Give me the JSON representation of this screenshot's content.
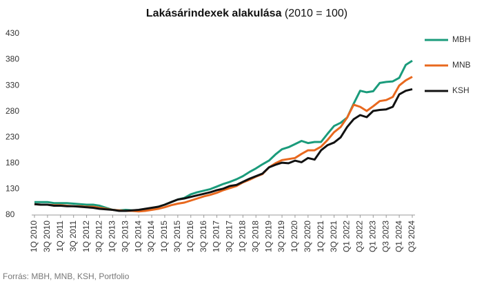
{
  "chart_data": {
    "type": "line",
    "title": "Lakásárindexek alakulása",
    "subtitle": "(2010 = 100)",
    "source": "Forrás: MBH, MNB, KSH, Portfolio",
    "categories": [
      "1Q 2010",
      null,
      "3Q 2010",
      null,
      "1Q 2011",
      null,
      "3Q 2011",
      null,
      "1Q 2012",
      null,
      "3Q 2012",
      null,
      "1Q 2013",
      null,
      "3Q 2013",
      null,
      "1Q 2014",
      null,
      "3Q 2014",
      null,
      "1Q 2015",
      null,
      "3Q 2015",
      null,
      "1Q 2016",
      null,
      "3Q 2016",
      null,
      "1Q 2017",
      null,
      "3Q 2017",
      null,
      "1Q 2018",
      null,
      "3Q 2018",
      null,
      "1Q 2019",
      null,
      "3Q 2019",
      null,
      "1Q 2020",
      null,
      "3Q 2020",
      null,
      "1Q 2021",
      null,
      "3Q 2021",
      null,
      "Q1 2022",
      null,
      "Q3 2022",
      null,
      "Q1 2023",
      null,
      "Q3 2023",
      null,
      "Q1 2024",
      null,
      "Q3 2024"
    ],
    "series": [
      {
        "name": "MBH",
        "color": "#1a9b7b",
        "values": [
          105,
          105,
          105,
          103,
          103,
          103,
          102,
          101,
          100,
          100,
          98,
          94,
          90,
          89,
          90,
          89,
          89,
          91,
          93,
          96,
          100,
          105,
          110,
          113,
          120,
          124,
          127,
          130,
          135,
          140,
          144,
          149,
          155,
          163,
          170,
          178,
          185,
          197,
          207,
          211,
          217,
          223,
          219,
          221,
          221,
          237,
          252,
          258,
          268,
          295,
          320,
          317,
          319,
          335,
          337,
          338,
          345,
          370,
          378
        ]
      },
      {
        "name": "MNB",
        "color": "#e8681e",
        "values": [
          101,
          100,
          100,
          99,
          99,
          98,
          97,
          97,
          96,
          96,
          94,
          92,
          90,
          89,
          88,
          88,
          87,
          88,
          90,
          92,
          95,
          99,
          102,
          104,
          108,
          112,
          116,
          119,
          123,
          128,
          132,
          136,
          143,
          148,
          154,
          159,
          172,
          180,
          186,
          188,
          190,
          198,
          205,
          205,
          212,
          225,
          240,
          250,
          268,
          293,
          289,
          281,
          290,
          300,
          302,
          308,
          330,
          340,
          347
        ]
      },
      {
        "name": "KSH",
        "color": "#111111",
        "values": [
          101,
          100,
          100,
          98,
          98,
          97,
          97,
          96,
          95,
          94,
          92,
          91,
          90,
          88,
          88,
          89,
          90,
          92,
          94,
          96,
          100,
          105,
          110,
          112,
          115,
          118,
          121,
          124,
          128,
          131,
          136,
          138,
          144,
          150,
          155,
          160,
          172,
          177,
          181,
          180,
          185,
          182,
          190,
          187,
          205,
          215,
          220,
          230,
          250,
          265,
          273,
          269,
          281,
          283,
          284,
          289,
          313,
          320,
          323
        ]
      }
    ],
    "ylim": [
      80,
      430
    ],
    "yticks": [
      80,
      130,
      180,
      230,
      280,
      330,
      380,
      430
    ],
    "grid": false,
    "legend": "right"
  }
}
